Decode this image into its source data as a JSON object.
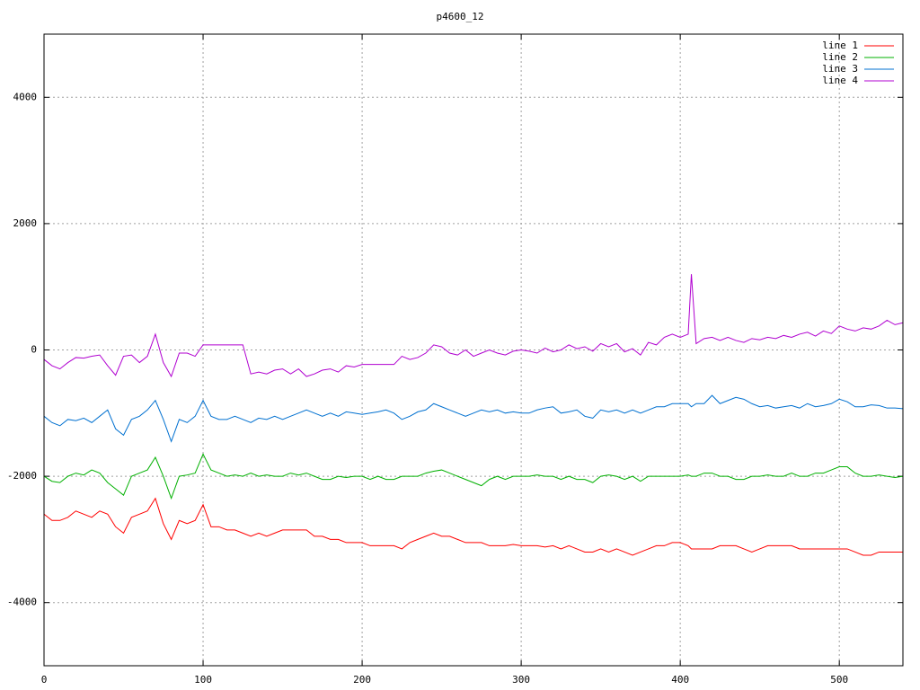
{
  "chart_data": {
    "type": "line",
    "title": "p4600_12",
    "xlim": [
      0,
      540
    ],
    "ylim": [
      -5000,
      5000
    ],
    "xticks": [
      0,
      100,
      200,
      300,
      400,
      500
    ],
    "yticks": [
      -4000,
      -2000,
      0,
      2000,
      4000
    ],
    "grid": true,
    "legend": "top-right",
    "x": [
      0,
      5,
      10,
      15,
      20,
      25,
      30,
      35,
      40,
      45,
      50,
      55,
      60,
      65,
      70,
      75,
      80,
      85,
      90,
      95,
      100,
      105,
      110,
      115,
      120,
      125,
      130,
      135,
      140,
      145,
      150,
      155,
      160,
      165,
      170,
      175,
      180,
      185,
      190,
      195,
      200,
      205,
      210,
      215,
      220,
      225,
      230,
      235,
      240,
      245,
      250,
      255,
      260,
      265,
      270,
      275,
      280,
      285,
      290,
      295,
      300,
      305,
      310,
      315,
      320,
      325,
      330,
      335,
      340,
      345,
      350,
      355,
      360,
      365,
      370,
      375,
      380,
      385,
      390,
      395,
      400,
      405,
      407,
      410,
      415,
      420,
      425,
      430,
      435,
      440,
      445,
      450,
      455,
      460,
      465,
      470,
      475,
      480,
      485,
      490,
      495,
      500,
      505,
      510,
      515,
      520,
      525,
      530,
      535,
      540
    ],
    "series": [
      {
        "name": "line 1",
        "color": "#ff0000",
        "values": [
          -2600,
          -2700,
          -2700,
          -2650,
          -2550,
          -2600,
          -2650,
          -2550,
          -2600,
          -2800,
          -2900,
          -2650,
          -2600,
          -2550,
          -2350,
          -2750,
          -3000,
          -2700,
          -2750,
          -2700,
          -2450,
          -2800,
          -2800,
          -2850,
          -2850,
          -2900,
          -2950,
          -2900,
          -2950,
          -2900,
          -2850,
          -2850,
          -2850,
          -2850,
          -2950,
          -2950,
          -3000,
          -3000,
          -3050,
          -3050,
          -3050,
          -3100,
          -3100,
          -3100,
          -3100,
          -3150,
          -3050,
          -3000,
          -2950,
          -2900,
          -2950,
          -2950,
          -3000,
          -3050,
          -3050,
          -3050,
          -3100,
          -3100,
          -3100,
          -3080,
          -3100,
          -3100,
          -3100,
          -3120,
          -3100,
          -3150,
          -3100,
          -3150,
          -3200,
          -3200,
          -3150,
          -3200,
          -3150,
          -3200,
          -3250,
          -3200,
          -3150,
          -3100,
          -3100,
          -3050,
          -3050,
          -3100,
          -3150,
          -3150,
          -3150,
          -3150,
          -3100,
          -3100,
          -3100,
          -3150,
          -3200,
          -3150,
          -3100,
          -3100,
          -3100,
          -3100,
          -3150,
          -3150,
          -3150,
          -3150,
          -3150,
          -3150,
          -3150,
          -3200,
          -3250,
          -3250,
          -3200,
          -3200,
          -3200,
          -3200
        ]
      },
      {
        "name": "line 2",
        "color": "#00b000",
        "values": [
          -2000,
          -2080,
          -2100,
          -2000,
          -1950,
          -1980,
          -1900,
          -1950,
          -2100,
          -2200,
          -2300,
          -2000,
          -1950,
          -1900,
          -1700,
          -2000,
          -2350,
          -2000,
          -1980,
          -1950,
          -1650,
          -1900,
          -1950,
          -2000,
          -1980,
          -2000,
          -1950,
          -2000,
          -1980,
          -2000,
          -2000,
          -1950,
          -1980,
          -1950,
          -2000,
          -2050,
          -2050,
          -2000,
          -2020,
          -2000,
          -2000,
          -2050,
          -2000,
          -2050,
          -2050,
          -2000,
          -2000,
          -2000,
          -1950,
          -1920,
          -1900,
          -1950,
          -2000,
          -2050,
          -2100,
          -2150,
          -2050,
          -2000,
          -2050,
          -2000,
          -2000,
          -2000,
          -1980,
          -2000,
          -2000,
          -2050,
          -2000,
          -2050,
          -2050,
          -2100,
          -2000,
          -1980,
          -2000,
          -2050,
          -2000,
          -2080,
          -2000,
          -2000,
          -2000,
          -2000,
          -2000,
          -1980,
          -2000,
          -2000,
          -1950,
          -1950,
          -2000,
          -2000,
          -2050,
          -2050,
          -2000,
          -2000,
          -1980,
          -2000,
          -2000,
          -1950,
          -2000,
          -2000,
          -1950,
          -1950,
          -1900,
          -1850,
          -1850,
          -1950,
          -2000,
          -2000,
          -1980,
          -2000,
          -2020,
          -2000
        ]
      },
      {
        "name": "line 3",
        "color": "#0070d0",
        "values": [
          -1050,
          -1150,
          -1200,
          -1100,
          -1120,
          -1080,
          -1150,
          -1050,
          -950,
          -1250,
          -1350,
          -1100,
          -1050,
          -950,
          -800,
          -1100,
          -1450,
          -1100,
          -1150,
          -1050,
          -800,
          -1050,
          -1100,
          -1100,
          -1050,
          -1100,
          -1150,
          -1080,
          -1100,
          -1050,
          -1100,
          -1050,
          -1000,
          -950,
          -1000,
          -1050,
          -1000,
          -1050,
          -980,
          -1000,
          -1020,
          -1000,
          -980,
          -950,
          -1000,
          -1100,
          -1050,
          -980,
          -950,
          -850,
          -900,
          -950,
          -1000,
          -1050,
          -1000,
          -950,
          -980,
          -950,
          -1000,
          -980,
          -1000,
          -1000,
          -950,
          -920,
          -900,
          -1000,
          -980,
          -950,
          -1050,
          -1080,
          -950,
          -980,
          -950,
          -1000,
          -950,
          -1000,
          -950,
          -900,
          -900,
          -850,
          -850,
          -850,
          -900,
          -850,
          -850,
          -720,
          -850,
          -800,
          -750,
          -780,
          -850,
          -900,
          -880,
          -920,
          -900,
          -880,
          -920,
          -850,
          -900,
          -880,
          -850,
          -780,
          -820,
          -900,
          -900,
          -870,
          -880,
          -920,
          -920,
          -930
        ]
      },
      {
        "name": "line 4",
        "color": "#b000d0",
        "values": [
          -150,
          -250,
          -300,
          -200,
          -120,
          -130,
          -100,
          -80,
          -250,
          -400,
          -100,
          -80,
          -200,
          -100,
          250,
          -200,
          -420,
          -50,
          -50,
          -100,
          80,
          80,
          80,
          80,
          80,
          80,
          -380,
          -350,
          -380,
          -320,
          -300,
          -380,
          -300,
          -420,
          -380,
          -320,
          -300,
          -350,
          -250,
          -270,
          -230,
          -230,
          -230,
          -230,
          -230,
          -100,
          -150,
          -120,
          -50,
          80,
          50,
          -50,
          -80,
          0,
          -100,
          -50,
          0,
          -50,
          -80,
          -20,
          0,
          -20,
          -50,
          30,
          -30,
          0,
          80,
          20,
          50,
          -20,
          100,
          50,
          100,
          -30,
          20,
          -80,
          120,
          80,
          200,
          250,
          200,
          250,
          1200,
          100,
          180,
          200,
          150,
          200,
          150,
          120,
          180,
          160,
          200,
          180,
          230,
          200,
          250,
          280,
          220,
          300,
          260,
          380,
          330,
          300,
          350,
          330,
          380,
          470,
          400,
          430
        ]
      }
    ]
  }
}
